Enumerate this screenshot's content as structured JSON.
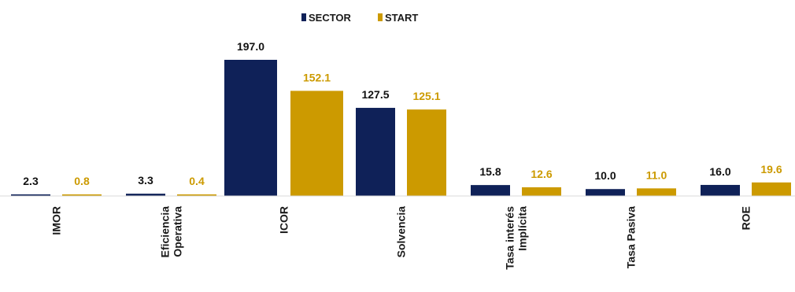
{
  "chart_data": {
    "type": "bar",
    "categories": [
      "IMOR",
      "Eficiencia Operativa",
      "ICOR",
      "Solvencia",
      "Tasa interés Implícita",
      "Tasa Pasiva",
      "ROE"
    ],
    "category_lines": [
      [
        "IMOR"
      ],
      [
        "Eficiencia",
        "Operativa"
      ],
      [
        "ICOR"
      ],
      [
        "Solvencia"
      ],
      [
        "Tasa interés",
        "Implícita"
      ],
      [
        "Tasa Pasiva"
      ],
      [
        "ROE"
      ]
    ],
    "series": [
      {
        "name": "SECTOR",
        "color": "#0f2158",
        "values": [
          2.3,
          3.3,
          197.0,
          127.5,
          15.8,
          10.0,
          16.0
        ],
        "labels": [
          "2.3",
          "3.3",
          "197.0",
          "127.5",
          "15.8",
          "10.0",
          "16.0"
        ],
        "label_color": "#111111"
      },
      {
        "name": "START",
        "color": "#cc9a00",
        "values": [
          0.8,
          0.4,
          152.1,
          125.1,
          12.6,
          11.0,
          19.6
        ],
        "labels": [
          "0.8",
          "0.4",
          "152.1",
          "125.1",
          "12.6",
          "11.0",
          "19.6"
        ],
        "label_color": "#cc9a00"
      }
    ],
    "title": "",
    "xlabel": "",
    "ylabel": "",
    "grid": false,
    "legend_position": "top-center"
  }
}
